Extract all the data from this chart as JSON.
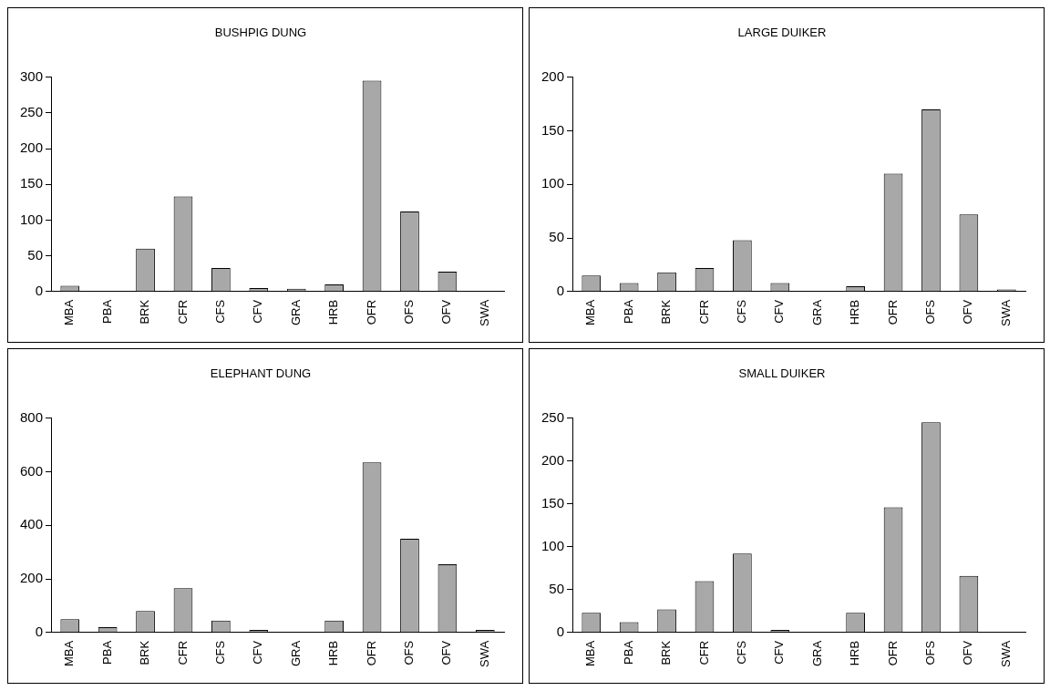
{
  "chart_data": [
    {
      "type": "bar",
      "title": "BUSHPIG DUNG",
      "categories": [
        "MBA",
        "PBA",
        "BRK",
        "CFR",
        "CFS",
        "CFV",
        "GRA",
        "HRB",
        "OFR",
        "OFS",
        "OFV",
        "SWA"
      ],
      "values": [
        8,
        0,
        60,
        133,
        33,
        5,
        4,
        10,
        295,
        112,
        28,
        0
      ],
      "color": "#a8a8a8",
      "ylim": [
        0,
        300
      ],
      "yticks": [
        0,
        50,
        100,
        150,
        200,
        250,
        300
      ],
      "grid": false
    },
    {
      "type": "bar",
      "title": "LARGE DUIKER",
      "categories": [
        "MBA",
        "PBA",
        "BRK",
        "CFR",
        "CFS",
        "CFV",
        "GRA",
        "HRB",
        "OFR",
        "OFS",
        "OFV",
        "SWA"
      ],
      "values": [
        15,
        8,
        18,
        22,
        48,
        8,
        0,
        5,
        110,
        170,
        72,
        2
      ],
      "color": "#a8a8a8",
      "ylim": [
        0,
        200
      ],
      "yticks": [
        0,
        50,
        100,
        150,
        200
      ],
      "grid": false
    },
    {
      "type": "bar",
      "title": "ELEPHANT DUNG",
      "categories": [
        "MBA",
        "PBA",
        "BRK",
        "CFR",
        "CFS",
        "CFV",
        "GRA",
        "HRB",
        "OFR",
        "OFS",
        "OFV",
        "SWA"
      ],
      "values": [
        50,
        20,
        80,
        165,
        45,
        10,
        0,
        45,
        635,
        350,
        255,
        10
      ],
      "color": "#a8a8a8",
      "ylim": [
        0,
        800
      ],
      "yticks": [
        0,
        200,
        400,
        600,
        800
      ],
      "grid": false
    },
    {
      "type": "bar",
      "title": "SMALL DUIKER",
      "categories": [
        "MBA",
        "PBA",
        "BRK",
        "CFR",
        "CFS",
        "CFV",
        "GRA",
        "HRB",
        "OFR",
        "OFS",
        "OFV",
        "SWA"
      ],
      "values": [
        23,
        12,
        27,
        60,
        92,
        3,
        0,
        23,
        146,
        245,
        66,
        0
      ],
      "color": "#a8a8a8",
      "ylim": [
        0,
        250
      ],
      "yticks": [
        0,
        50,
        100,
        150,
        200,
        250
      ],
      "grid": false
    }
  ]
}
